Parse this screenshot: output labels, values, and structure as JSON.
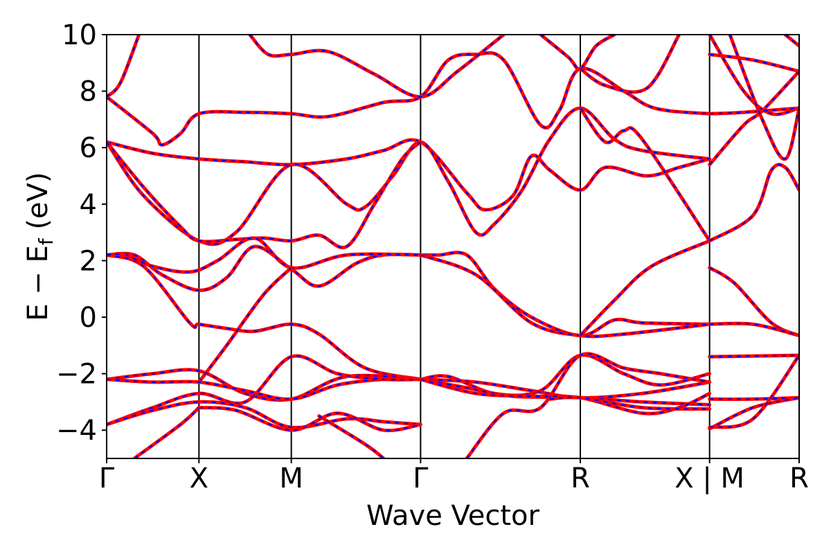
{
  "chart_data": {
    "type": "line",
    "title": "",
    "xlabel": "Wave Vector",
    "ylabel_parts": {
      "e": "E",
      "minus": "−",
      "ef_main": "E",
      "ef_sub": "f",
      "unit": "(eV)"
    },
    "ylim": [
      -5,
      10
    ],
    "yticks": [
      -4,
      -2,
      0,
      2,
      4,
      6,
      8,
      10
    ],
    "ytick_labels": [
      "−4",
      "−2",
      "0",
      "2",
      "4",
      "6",
      "8",
      "10"
    ],
    "xlim": [
      0,
      7.5
    ],
    "kpoints": [
      {
        "label": "Γ",
        "x": 0
      },
      {
        "label": "X",
        "x": 1.0
      },
      {
        "label": "M",
        "x": 2.0
      },
      {
        "label": "Γ",
        "x": 3.4
      },
      {
        "label": "R",
        "x": 5.13
      },
      {
        "label": "X | M",
        "x": 6.53
      },
      {
        "label": "R",
        "x": 7.5
      }
    ],
    "colors": {
      "series_primary": "#ff0000",
      "series_secondary": "#0000ff",
      "axes": "#000000"
    },
    "series": [
      {
        "values": [
          [
            0,
            7.8
          ],
          [
            0.5,
            6.5
          ],
          [
            0.6,
            6.1
          ],
          [
            0.8,
            6.5
          ],
          [
            1.0,
            7.2
          ],
          [
            1.5,
            7.25
          ],
          [
            2.0,
            7.2
          ],
          [
            2.4,
            7.1
          ],
          [
            3.0,
            7.6
          ],
          [
            3.4,
            7.8
          ],
          [
            3.7,
            9.1
          ],
          [
            4.0,
            9.3
          ],
          [
            4.3,
            9.1
          ],
          [
            4.7,
            6.8
          ],
          [
            4.9,
            7.3
          ],
          [
            5.13,
            8.8
          ],
          [
            5.6,
            8.0
          ],
          [
            5.85,
            7.5
          ],
          [
            6.1,
            7.3
          ],
          [
            6.53,
            7.2
          ]
        ]
      },
      {
        "values": [
          [
            0,
            7.8
          ],
          [
            0.15,
            8.3
          ],
          [
            0.35,
            10.0
          ]
        ]
      },
      {
        "values": [
          [
            1.55,
            10.0
          ],
          [
            1.75,
            9.3
          ],
          [
            2.0,
            9.3
          ],
          [
            2.4,
            9.4
          ],
          [
            2.9,
            8.6
          ],
          [
            3.4,
            7.8
          ],
          [
            3.8,
            8.7
          ],
          [
            4.3,
            10.0
          ]
        ]
      },
      {
        "values": [
          [
            4.7,
            10.0
          ],
          [
            5.0,
            9.2
          ],
          [
            5.13,
            8.8
          ],
          [
            5.3,
            9.6
          ],
          [
            5.5,
            10.0
          ]
        ]
      },
      {
        "values": [
          [
            5.13,
            8.8
          ],
          [
            5.4,
            8.2
          ],
          [
            5.85,
            8.1
          ],
          [
            6.2,
            10.0
          ]
        ]
      },
      {
        "values": [
          [
            0,
            6.2
          ],
          [
            0.5,
            5.8
          ],
          [
            1.0,
            5.6
          ],
          [
            1.5,
            5.5
          ],
          [
            2.0,
            5.4
          ],
          [
            2.6,
            5.6
          ],
          [
            3.0,
            5.9
          ],
          [
            3.4,
            6.2
          ],
          [
            3.9,
            4.4
          ],
          [
            4.1,
            3.8
          ],
          [
            4.4,
            4.3
          ],
          [
            4.6,
            5.7
          ],
          [
            4.8,
            5.2
          ],
          [
            5.13,
            4.5
          ],
          [
            5.4,
            5.3
          ],
          [
            5.85,
            5.0
          ],
          [
            6.2,
            5.3
          ],
          [
            6.53,
            5.6
          ]
        ]
      },
      {
        "values": [
          [
            0,
            6.2
          ],
          [
            0.4,
            4.3
          ],
          [
            1.0,
            2.7
          ],
          [
            1.4,
            3.0
          ],
          [
            2.0,
            5.4
          ],
          [
            2.6,
            4.0
          ],
          [
            2.8,
            3.9
          ],
          [
            3.1,
            5.0
          ],
          [
            3.4,
            6.2
          ],
          [
            3.7,
            4.8
          ],
          [
            4.0,
            3.0
          ],
          [
            4.2,
            3.3
          ],
          [
            4.5,
            4.5
          ],
          [
            4.8,
            6.3
          ],
          [
            5.13,
            7.4
          ],
          [
            5.5,
            6.3
          ],
          [
            5.8,
            5.9
          ],
          [
            6.53,
            5.6
          ]
        ]
      },
      {
        "values": [
          [
            0,
            6.2
          ],
          [
            0.4,
            4.6
          ],
          [
            0.8,
            3.2
          ],
          [
            1.0,
            2.7
          ],
          [
            1.4,
            2.75
          ],
          [
            1.7,
            2.8
          ],
          [
            2.0,
            2.7
          ],
          [
            2.3,
            2.9
          ],
          [
            2.6,
            2.5
          ],
          [
            2.9,
            4.0
          ],
          [
            3.2,
            5.6
          ],
          [
            3.4,
            6.2
          ]
        ]
      },
      {
        "values": [
          [
            5.13,
            7.4
          ],
          [
            5.4,
            6.2
          ],
          [
            5.6,
            6.6
          ],
          [
            5.8,
            6.3
          ],
          [
            6.53,
            2.7
          ]
        ]
      },
      {
        "values": [
          [
            0,
            2.2
          ],
          [
            0.3,
            2.2
          ],
          [
            0.6,
            1.5
          ],
          [
            1.0,
            0.95
          ],
          [
            1.3,
            1.4
          ],
          [
            1.6,
            2.5
          ],
          [
            2.0,
            1.7
          ],
          [
            2.3,
            1.1
          ],
          [
            2.7,
            1.9
          ],
          [
            3.0,
            2.2
          ],
          [
            3.4,
            2.2
          ]
        ]
      },
      {
        "values": [
          [
            0,
            2.2
          ],
          [
            0.4,
            1.8
          ],
          [
            0.9,
            -0.2
          ],
          [
            1.0,
            -0.25
          ],
          [
            1.3,
            -0.4
          ],
          [
            1.6,
            -0.5
          ],
          [
            2.0,
            -0.25
          ],
          [
            2.3,
            -0.6
          ],
          [
            2.8,
            -1.8
          ],
          [
            3.4,
            -2.2
          ]
        ]
      },
      {
        "values": [
          [
            0,
            2.2
          ],
          [
            0.2,
            2.2
          ],
          [
            0.5,
            1.8
          ],
          [
            0.9,
            1.6
          ],
          [
            1.2,
            2.0
          ],
          [
            1.6,
            2.8
          ],
          [
            2.0,
            1.75
          ],
          [
            2.6,
            2.2
          ],
          [
            3.4,
            2.2
          ],
          [
            3.6,
            2.2
          ],
          [
            3.9,
            2.2
          ],
          [
            4.2,
            1.0
          ],
          [
            4.6,
            0.0
          ],
          [
            5.13,
            -0.65
          ],
          [
            5.5,
            -0.1
          ],
          [
            5.8,
            -0.2
          ],
          [
            6.53,
            -0.25
          ]
        ]
      },
      {
        "values": [
          [
            1.0,
            -2.3
          ],
          [
            1.3,
            -1.0
          ],
          [
            1.7,
            0.8
          ],
          [
            2.0,
            1.75
          ]
        ]
      },
      {
        "values": [
          [
            3.4,
            2.2
          ],
          [
            4.0,
            1.5
          ],
          [
            4.6,
            -0.2
          ],
          [
            5.13,
            -0.65
          ],
          [
            5.6,
            -0.6
          ],
          [
            6.53,
            -0.25
          ]
        ]
      },
      {
        "values": [
          [
            5.13,
            -0.65
          ],
          [
            5.5,
            0.6
          ],
          [
            5.9,
            1.8
          ],
          [
            6.53,
            2.7
          ]
        ]
      },
      {
        "values": [
          [
            0,
            -2.2
          ],
          [
            0.5,
            -2.0
          ],
          [
            1.0,
            -1.9
          ],
          [
            1.5,
            -2.7
          ],
          [
            2.0,
            -2.9
          ],
          [
            2.6,
            -2.1
          ],
          [
            3.4,
            -2.2
          ]
        ]
      },
      {
        "values": [
          [
            0,
            -2.2
          ],
          [
            0.5,
            -2.3
          ],
          [
            1.0,
            -2.3
          ],
          [
            1.5,
            -2.6
          ],
          [
            2.0,
            -2.9
          ],
          [
            2.5,
            -2.4
          ],
          [
            3.0,
            -2.2
          ],
          [
            3.4,
            -2.2
          ]
        ]
      },
      {
        "values": [
          [
            0,
            -3.8
          ],
          [
            0.5,
            -3.2
          ],
          [
            1.0,
            -2.7
          ],
          [
            1.5,
            -3.0
          ],
          [
            2.0,
            -1.4
          ],
          [
            2.5,
            -2.0
          ],
          [
            3.0,
            -2.2
          ],
          [
            3.4,
            -2.2
          ]
        ]
      },
      {
        "values": [
          [
            0,
            -3.8
          ],
          [
            0.5,
            -3.3
          ],
          [
            1.0,
            -3.0
          ],
          [
            1.5,
            -3.2
          ],
          [
            2.0,
            -3.9
          ],
          [
            2.6,
            -3.6
          ],
          [
            3.0,
            -3.7
          ],
          [
            3.4,
            -3.8
          ]
        ]
      },
      {
        "values": [
          [
            1.0,
            -3.2
          ],
          [
            1.4,
            -3.3
          ],
          [
            2.0,
            -4.0
          ],
          [
            2.5,
            -3.4
          ],
          [
            3.0,
            -4.0
          ],
          [
            3.4,
            -3.8
          ]
        ]
      },
      {
        "values": [
          [
            0.3,
            -5.0
          ],
          [
            0.8,
            -3.8
          ],
          [
            1.0,
            -3.2
          ]
        ]
      },
      {
        "values": [
          [
            2.3,
            -3.5
          ],
          [
            2.8,
            -4.5
          ],
          [
            3.0,
            -5.0
          ]
        ]
      },
      {
        "values": [
          [
            3.4,
            -2.2
          ],
          [
            3.7,
            -2.1
          ],
          [
            4.2,
            -2.7
          ],
          [
            4.7,
            -2.6
          ],
          [
            5.13,
            -1.35
          ],
          [
            5.6,
            -2.0
          ],
          [
            6.0,
            -2.4
          ],
          [
            6.53,
            -2.0
          ]
        ]
      },
      {
        "values": [
          [
            3.4,
            -2.2
          ],
          [
            4.0,
            -2.3
          ],
          [
            4.6,
            -2.6
          ],
          [
            5.13,
            -2.85
          ],
          [
            5.8,
            -2.7
          ],
          [
            6.53,
            -2.3
          ]
        ]
      },
      {
        "values": [
          [
            3.4,
            -2.2
          ],
          [
            3.9,
            -2.5
          ],
          [
            4.4,
            -2.8
          ],
          [
            5.13,
            -2.85
          ],
          [
            5.8,
            -3.0
          ],
          [
            6.53,
            -3.1
          ]
        ]
      },
      {
        "values": [
          [
            3.4,
            -2.2
          ],
          [
            4.0,
            -2.7
          ],
          [
            4.6,
            -2.8
          ],
          [
            5.13,
            -2.85
          ],
          [
            5.8,
            -3.4
          ],
          [
            6.2,
            -3.2
          ],
          [
            6.53,
            -2.7
          ]
        ]
      },
      {
        "values": [
          [
            3.9,
            -5.0
          ],
          [
            4.3,
            -3.4
          ],
          [
            4.7,
            -3.2
          ],
          [
            5.13,
            -1.35
          ],
          [
            5.6,
            -1.8
          ],
          [
            6.0,
            -2.0
          ],
          [
            6.53,
            -2.3
          ]
        ]
      },
      {
        "values": [
          [
            4.8,
            -2.9
          ],
          [
            5.13,
            -2.85
          ],
          [
            5.8,
            -3.2
          ],
          [
            6.53,
            -3.25
          ]
        ]
      },
      {
        "values": [
          [
            6.53,
            9.3
          ],
          [
            7.0,
            9.1
          ],
          [
            7.5,
            8.7
          ]
        ]
      },
      {
        "values": [
          [
            6.53,
            5.4
          ],
          [
            6.9,
            6.8
          ],
          [
            7.1,
            7.3
          ],
          [
            7.5,
            8.7
          ]
        ]
      },
      {
        "values": [
          [
            6.53,
            10.0
          ],
          [
            6.9,
            8.0
          ],
          [
            7.2,
            7.2
          ],
          [
            7.5,
            7.4
          ]
        ]
      },
      {
        "values": [
          [
            6.53,
            7.2
          ],
          [
            6.9,
            7.25
          ],
          [
            7.5,
            7.4
          ]
        ]
      },
      {
        "values": [
          [
            6.75,
            10.0
          ],
          [
            7.1,
            7.0
          ],
          [
            7.35,
            5.6
          ],
          [
            7.5,
            7.4
          ]
        ]
      },
      {
        "values": [
          [
            6.53,
            2.7
          ],
          [
            7.0,
            3.6
          ],
          [
            7.2,
            5.2
          ],
          [
            7.35,
            5.3
          ],
          [
            7.5,
            4.5
          ]
        ]
      },
      {
        "values": [
          [
            6.53,
            1.75
          ],
          [
            6.8,
            1.2
          ],
          [
            7.2,
            -0.2
          ],
          [
            7.5,
            -0.65
          ]
        ]
      },
      {
        "values": [
          [
            6.53,
            -0.25
          ],
          [
            7.0,
            -0.25
          ],
          [
            7.5,
            -0.65
          ]
        ]
      },
      {
        "values": [
          [
            6.53,
            -1.4
          ],
          [
            7.5,
            -1.35
          ]
        ]
      },
      {
        "values": [
          [
            6.53,
            -2.9
          ],
          [
            7.0,
            -2.9
          ],
          [
            7.5,
            -2.85
          ]
        ]
      },
      {
        "values": [
          [
            6.53,
            -3.95
          ],
          [
            7.0,
            -3.2
          ],
          [
            7.5,
            -2.85
          ]
        ]
      },
      {
        "values": [
          [
            6.53,
            -3.9
          ],
          [
            7.0,
            -3.6
          ],
          [
            7.5,
            -1.35
          ]
        ]
      },
      {
        "values": [
          [
            7.35,
            10.0
          ],
          [
            7.5,
            9.6
          ]
        ]
      }
    ]
  }
}
